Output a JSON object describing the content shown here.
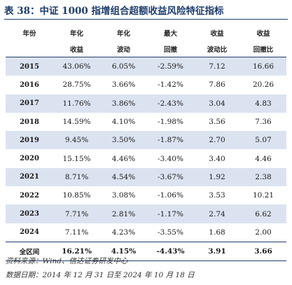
{
  "title": "表 38：中证 1000 指增组合超额收益风险特征指标",
  "columns": [
    {
      "line1": "年份",
      "line2": ""
    },
    {
      "line1": "年化",
      "line2": "收益"
    },
    {
      "line1": "年化",
      "line2": "波动"
    },
    {
      "line1": "最大",
      "line2": "回撤"
    },
    {
      "line1": "收益",
      "line2": "波动比"
    },
    {
      "line1": "收益",
      "line2": "回撤比"
    }
  ],
  "rows": [
    [
      "2015",
      "43.06%",
      "6.05%",
      "-2.59%",
      "7.12",
      "16.66"
    ],
    [
      "2016",
      "28.75%",
      "3.66%",
      "-1.42%",
      "7.86",
      "20.26"
    ],
    [
      "2017",
      "11.76%",
      "3.86%",
      "-2.43%",
      "3.04",
      "4.83"
    ],
    [
      "2018",
      "14.59%",
      "4.10%",
      "-1.98%",
      "3.56",
      "7.36"
    ],
    [
      "2019",
      "9.45%",
      "3.50%",
      "-1.87%",
      "2.70",
      "5.07"
    ],
    [
      "2020",
      "15.15%",
      "4.46%",
      "-3.40%",
      "3.40",
      "4.46"
    ],
    [
      "2021",
      "8.71%",
      "4.54%",
      "-3.67%",
      "1.92",
      "2.38"
    ],
    [
      "2022",
      "10.85%",
      "3.08%",
      "-1.06%",
      "3.53",
      "10.21"
    ],
    [
      "2023",
      "7.71%",
      "2.81%",
      "-1.17%",
      "2.74",
      "6.62"
    ],
    [
      "2024",
      "7.11%",
      "4.23%",
      "-3.55%",
      "1.68",
      "2.00"
    ]
  ],
  "total": [
    "全区间",
    "16.21%",
    "4.15%",
    "-4.43%",
    "3.91",
    "3.66"
  ],
  "source": "资料来源：Wind、信达证券研发中心",
  "date_note": "数据日期：2014 年 12 月 31 日至 2024 年 10 月 18 日",
  "colors": {
    "accent": "#1f3d6b",
    "row_shade": "#dbe3f1"
  }
}
